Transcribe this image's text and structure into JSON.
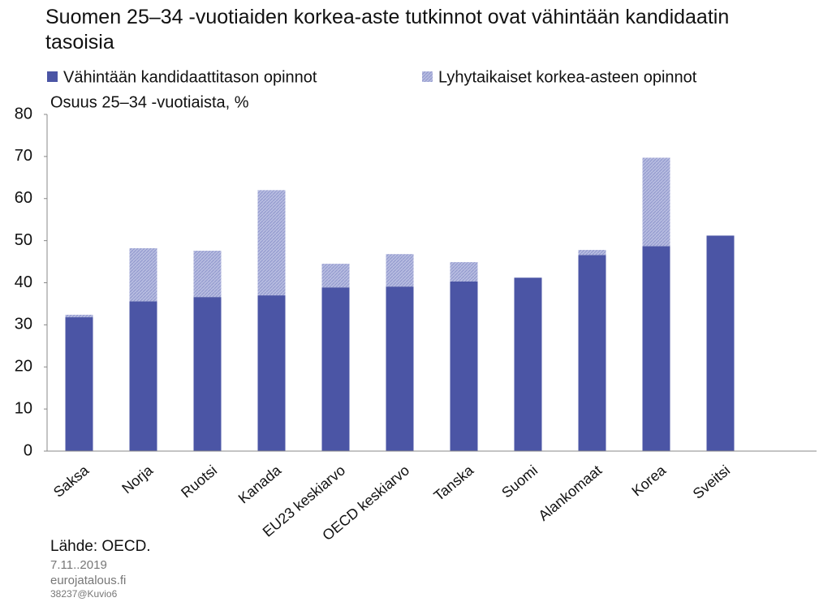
{
  "chart_data": {
    "type": "stacked_bar",
    "title": "Suomen 25–34 -vuotiaiden korkea-aste tutkinnot ovat vähintään kandidaatin tasoisia",
    "y_label": "Osuus 25–34 -vuotiaista, %",
    "categories": [
      "Saksa",
      "Norja",
      "Ruotsi",
      "Kanada",
      "EU23 keskiarvo",
      "OECD keskiarvo",
      "Tanska",
      "Suomi",
      "Alankomaat",
      "Korea",
      "Sveitsi"
    ],
    "series": [
      {
        "name": "Vähintään kandidaattitason opinnot",
        "color": "#4b55a5",
        "values": [
          31.8,
          35.6,
          36.6,
          37.0,
          38.9,
          39.1,
          40.3,
          41.2,
          46.6,
          48.7,
          51.2
        ]
      },
      {
        "name": "Lyhytaikaiset korkea-asteen opinnot",
        "color": "#a6acd8",
        "values": [
          0.6,
          12.6,
          11.0,
          25.0,
          5.6,
          7.7,
          4.6,
          0,
          1.2,
          21.0,
          0
        ]
      }
    ],
    "ylim": [
      0,
      80
    ],
    "yticks": [
      0,
      10,
      20,
      30,
      40,
      50,
      60,
      70,
      80
    ],
    "grid": false,
    "footer": {
      "source": "Lähde: OECD.",
      "date": "7.11..2019",
      "site": "eurojatalous.fi",
      "code": "38237@Kuvio6"
    }
  }
}
